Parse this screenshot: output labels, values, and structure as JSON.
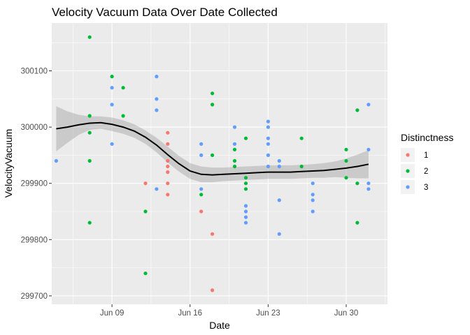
{
  "chart_data": {
    "type": "scatter",
    "title": "Velocity Vacuum Data Over Date Collected",
    "xlabel": "Date",
    "ylabel": "VelocityVacuum",
    "x_axis": {
      "range_days": [
        3.6,
        33.7
      ],
      "ticks": [
        {
          "day": 9,
          "label": "Jun 09"
        },
        {
          "day": 16,
          "label": "Jun 16"
        },
        {
          "day": 23,
          "label": "Jun 23"
        },
        {
          "day": 30,
          "label": "Jun 30"
        }
      ]
    },
    "y_axis": {
      "range": [
        299685,
        300185
      ],
      "ticks": [
        {
          "value": 299700,
          "label": "299700"
        },
        {
          "value": 299800,
          "label": "299800"
        },
        {
          "value": 299900,
          "label": "299900"
        },
        {
          "value": 300000,
          "label": "300000"
        },
        {
          "value": 300100,
          "label": "300100"
        }
      ]
    },
    "grid": true,
    "legend": {
      "title": "Distinctness",
      "placement": "right",
      "entries": [
        {
          "label": "1",
          "color": "#F8766D"
        },
        {
          "label": "2",
          "color": "#00BA38"
        },
        {
          "label": "3",
          "color": "#619CFF"
        }
      ]
    },
    "series": [
      {
        "group": "1",
        "color": "#F8766D",
        "points": [
          [
            12,
            299900
          ],
          [
            14,
            299990
          ],
          [
            14,
            299970
          ],
          [
            14,
            299940
          ],
          [
            14,
            299930
          ],
          [
            14,
            299920
          ],
          [
            14,
            299900
          ],
          [
            14,
            299880
          ],
          [
            17,
            299850
          ],
          [
            18,
            299810
          ],
          [
            18,
            299710
          ]
        ]
      },
      {
        "group": "2",
        "color": "#00BA38",
        "points": [
          [
            7,
            300160
          ],
          [
            7,
            300020
          ],
          [
            7,
            299990
          ],
          [
            7,
            299940
          ],
          [
            7,
            299830
          ],
          [
            9,
            300090
          ],
          [
            10,
            300070
          ],
          [
            10,
            300020
          ],
          [
            12,
            299850
          ],
          [
            12,
            299740
          ],
          [
            17,
            299880
          ],
          [
            18,
            300060
          ],
          [
            18,
            300040
          ],
          [
            18,
            299950
          ],
          [
            20,
            299960
          ],
          [
            20,
            299940
          ],
          [
            20,
            299930
          ],
          [
            21,
            299980
          ],
          [
            21,
            299910
          ],
          [
            21,
            299900
          ],
          [
            21,
            299890
          ],
          [
            26,
            299980
          ],
          [
            26,
            299930
          ],
          [
            30,
            299960
          ],
          [
            30,
            299940
          ],
          [
            30,
            299910
          ],
          [
            31,
            300030
          ],
          [
            31,
            299900
          ],
          [
            31,
            299830
          ]
        ]
      },
      {
        "group": "3",
        "color": "#619CFF",
        "points": [
          [
            4,
            299940
          ],
          [
            9,
            300070
          ],
          [
            9,
            300040
          ],
          [
            9,
            299970
          ],
          [
            13,
            300090
          ],
          [
            13,
            300050
          ],
          [
            13,
            300030
          ],
          [
            13,
            299890
          ],
          [
            17,
            299970
          ],
          [
            17,
            299950
          ],
          [
            17,
            299890
          ],
          [
            20,
            300000
          ],
          [
            20,
            299970
          ],
          [
            21,
            299860
          ],
          [
            21,
            299850
          ],
          [
            21,
            299840
          ],
          [
            21,
            299830
          ],
          [
            23,
            300010
          ],
          [
            23,
            300000
          ],
          [
            23,
            299980
          ],
          [
            23,
            299970
          ],
          [
            23,
            299950
          ],
          [
            23,
            299930
          ],
          [
            24,
            299940
          ],
          [
            24,
            299930
          ],
          [
            24,
            299870
          ],
          [
            24,
            299810
          ],
          [
            27,
            299900
          ],
          [
            27,
            299880
          ],
          [
            27,
            299870
          ],
          [
            27,
            299850
          ],
          [
            32,
            300040
          ],
          [
            32,
            299960
          ],
          [
            32,
            299900
          ],
          [
            32,
            299890
          ]
        ]
      }
    ],
    "smooth": {
      "method": "loess",
      "color": "#000000",
      "x": [
        4,
        5,
        6,
        7,
        8,
        9,
        10,
        11,
        12,
        13,
        14,
        15,
        16,
        17,
        18,
        19,
        20,
        21,
        22,
        23,
        24,
        25,
        26,
        27,
        28,
        29,
        30,
        31,
        32
      ],
      "y": [
        299997,
        300000,
        300004,
        300007,
        300008,
        300005,
        300000,
        299993,
        299982,
        299968,
        299951,
        299935,
        299922,
        299916,
        299915,
        299916,
        299917,
        299918,
        299919,
        299920,
        299920,
        299920,
        299921,
        299922,
        299923,
        299925,
        299927,
        299930,
        299934
      ],
      "ci_half_width": [
        40,
        28,
        18,
        12,
        11,
        12,
        12,
        12,
        12,
        13,
        14,
        14,
        14,
        14,
        13,
        12,
        12,
        12,
        12,
        12,
        12,
        12,
        12,
        12,
        13,
        14,
        17,
        21,
        25
      ]
    }
  }
}
